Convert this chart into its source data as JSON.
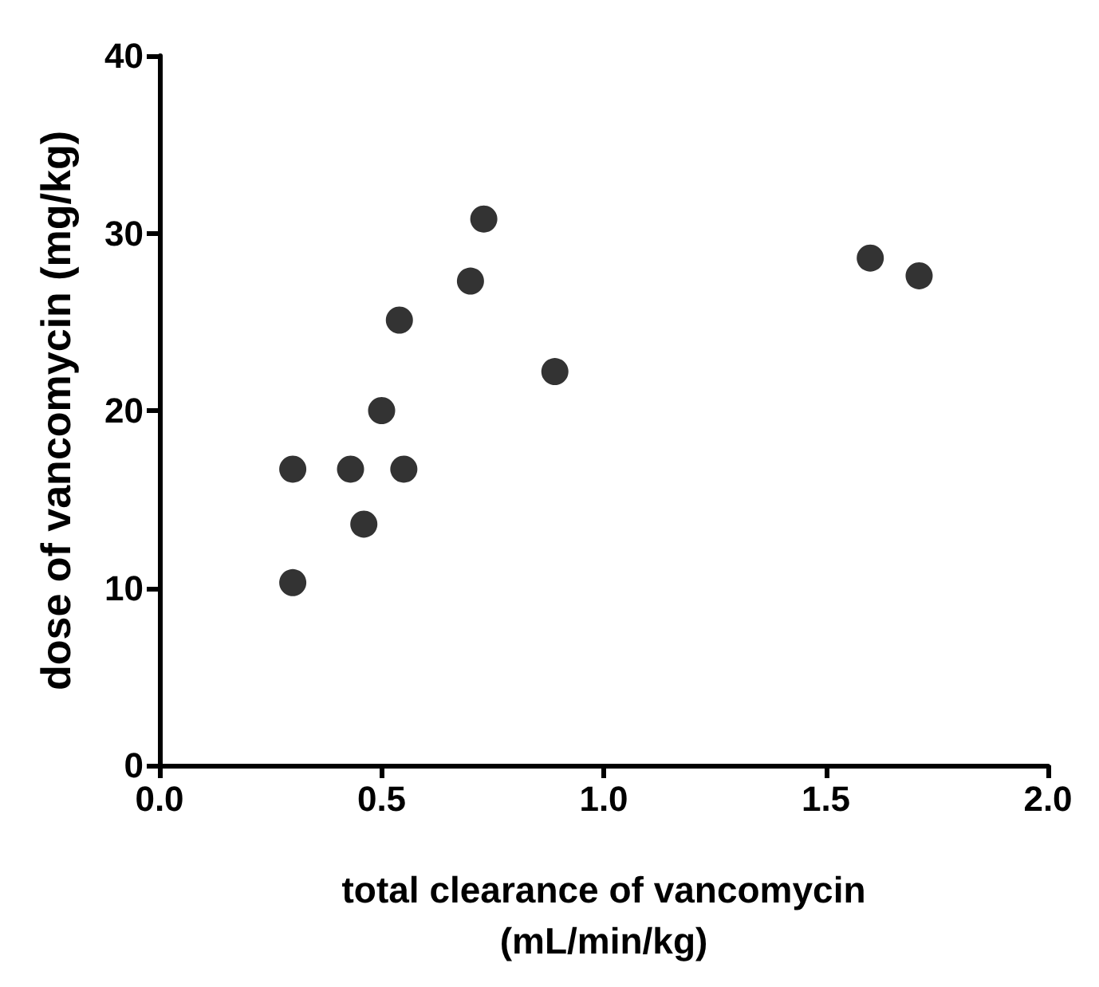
{
  "chart_data": {
    "type": "scatter",
    "xlabel": "total clearance of vancomycin\n(mL/min/kg)",
    "ylabel": "dose of vancomycin (mg/kg)",
    "x": [
      0.3,
      0.3,
      0.43,
      0.46,
      0.5,
      0.54,
      0.55,
      0.7,
      0.73,
      0.89,
      1.6,
      1.71
    ],
    "values": [
      10.3,
      16.7,
      16.7,
      13.6,
      20.0,
      25.1,
      16.7,
      27.3,
      30.8,
      22.2,
      28.6,
      27.6
    ],
    "color": "#000000",
    "marker": "circle",
    "grid": false,
    "xlim": [
      0,
      2
    ],
    "xticks": [
      {
        "value": 0,
        "label": "0.0"
      },
      {
        "value": 0.5,
        "label": "0.5"
      },
      {
        "value": 1,
        "label": "1.0"
      },
      {
        "value": 1.5,
        "label": "1.5"
      },
      {
        "value": 2,
        "label": "2.0"
      }
    ],
    "ylim": [
      0,
      40
    ],
    "yticks": [
      0,
      10,
      20,
      30,
      40
    ]
  }
}
